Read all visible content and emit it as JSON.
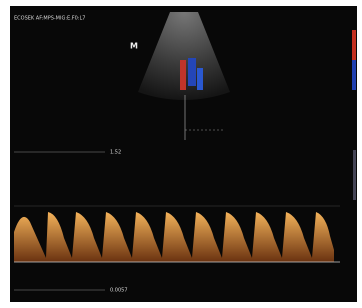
{
  "header": {
    "text": "ECOSEK AF:MPS-MIG:E.F0:L7"
  },
  "labels": {
    "marker": "M",
    "scale_left": "1.52",
    "scale_bottom": "0.0057"
  }
}
